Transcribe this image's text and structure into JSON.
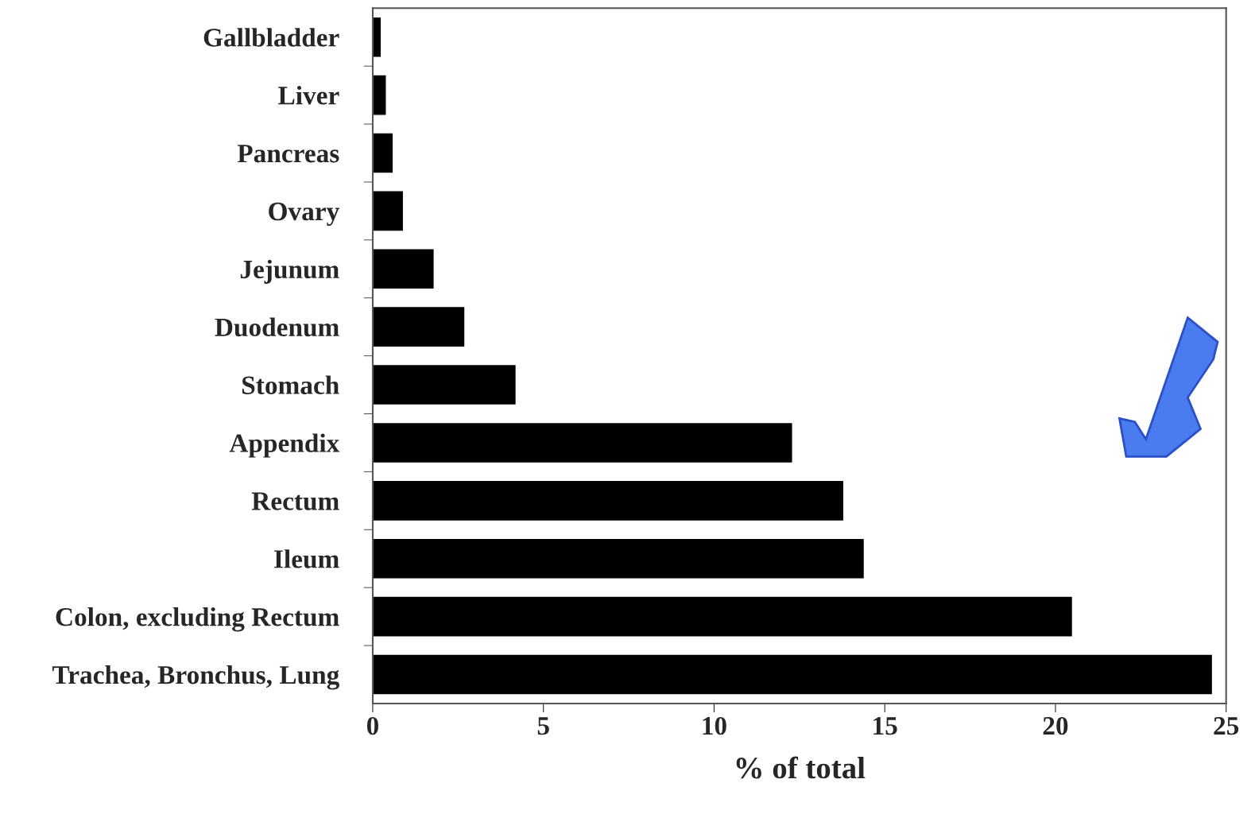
{
  "chart_data": {
    "type": "bar",
    "orientation": "horizontal",
    "xlabel": "% of total",
    "categories": [
      "Gallbladder",
      "Liver",
      "Pancreas",
      "Ovary",
      "Jejunum",
      "Duodenum",
      "Stomach",
      "Appendix",
      "Rectum",
      "Ileum",
      "Colon, excluding Rectum",
      "Trachea, Bronchus, Lung"
    ],
    "values": [
      0.25,
      0.4,
      0.6,
      0.9,
      1.8,
      2.7,
      4.2,
      12.3,
      13.8,
      14.4,
      20.5,
      24.6
    ],
    "color": "#000000",
    "xlim": [
      0,
      25
    ],
    "xticks": [
      0,
      5,
      10,
      15,
      20,
      25
    ],
    "grid": false,
    "legend": false
  }
}
